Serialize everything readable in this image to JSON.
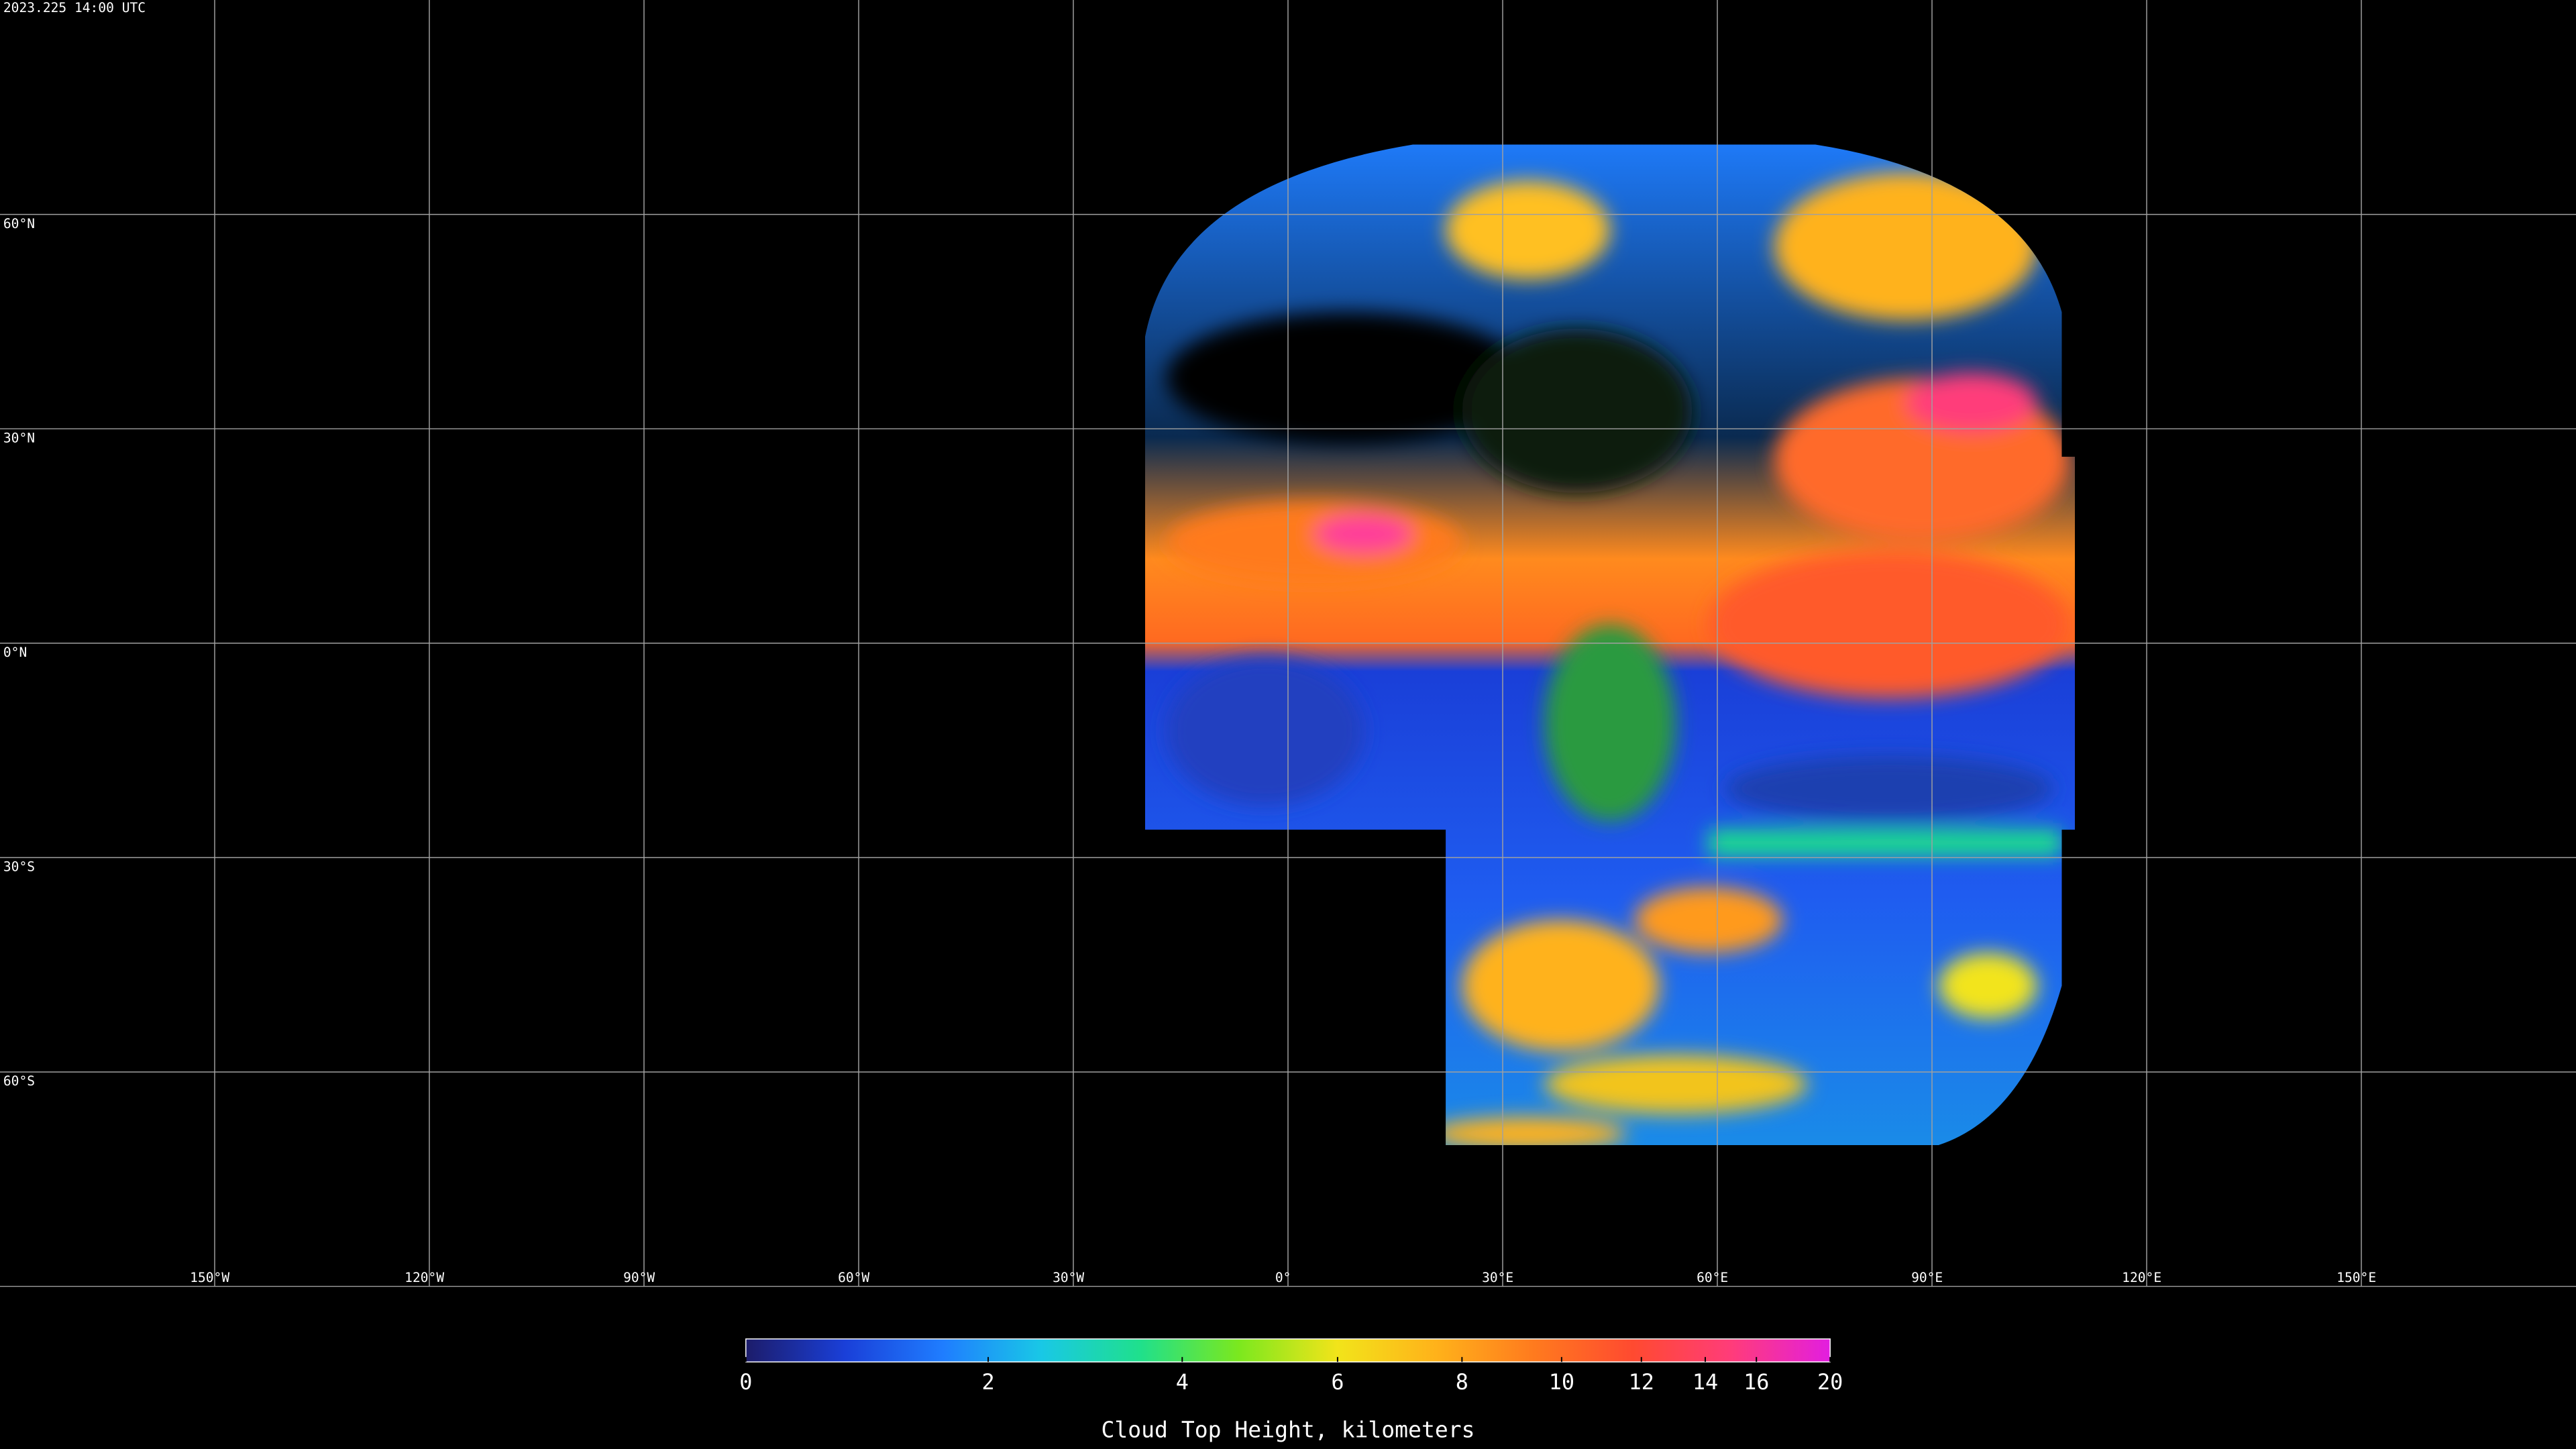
{
  "timestamp": "2023.225 14:00 UTC",
  "map": {
    "lon_lines": [
      {
        "value": -150,
        "label": "150°W"
      },
      {
        "value": -120,
        "label": "120°W"
      },
      {
        "value": -90,
        "label": "90°W"
      },
      {
        "value": -60,
        "label": "60°W"
      },
      {
        "value": -30,
        "label": "30°W"
      },
      {
        "value": 0,
        "label": "0°"
      },
      {
        "value": 30,
        "label": "30°E"
      },
      {
        "value": 60,
        "label": "60°E"
      },
      {
        "value": 90,
        "label": "90°E"
      },
      {
        "value": 120,
        "label": "120°E"
      },
      {
        "value": 150,
        "label": "150°E"
      }
    ],
    "lat_lines": [
      {
        "value": 60,
        "label": "60°N"
      },
      {
        "value": 30,
        "label": "30°N"
      },
      {
        "value": 0,
        "label": "0°N"
      },
      {
        "value": -30,
        "label": "30°S"
      },
      {
        "value": -60,
        "label": "60°S"
      }
    ],
    "grid_color": "#a0a0a0"
  },
  "colorbar": {
    "title": "Cloud Top Height, kilometers",
    "range": [
      0,
      20
    ],
    "ticks": [
      0,
      2,
      4,
      6,
      8,
      10,
      12,
      14,
      16,
      20
    ],
    "colormap": [
      "#1c1c6a",
      "#1a3fd8",
      "#1f7dff",
      "#19c8e6",
      "#1fe08c",
      "#7be81e",
      "#f2e41a",
      "#ffb21a",
      "#ff7a1e",
      "#ff4a30",
      "#ff3c7a",
      "#e21ee0"
    ]
  }
}
